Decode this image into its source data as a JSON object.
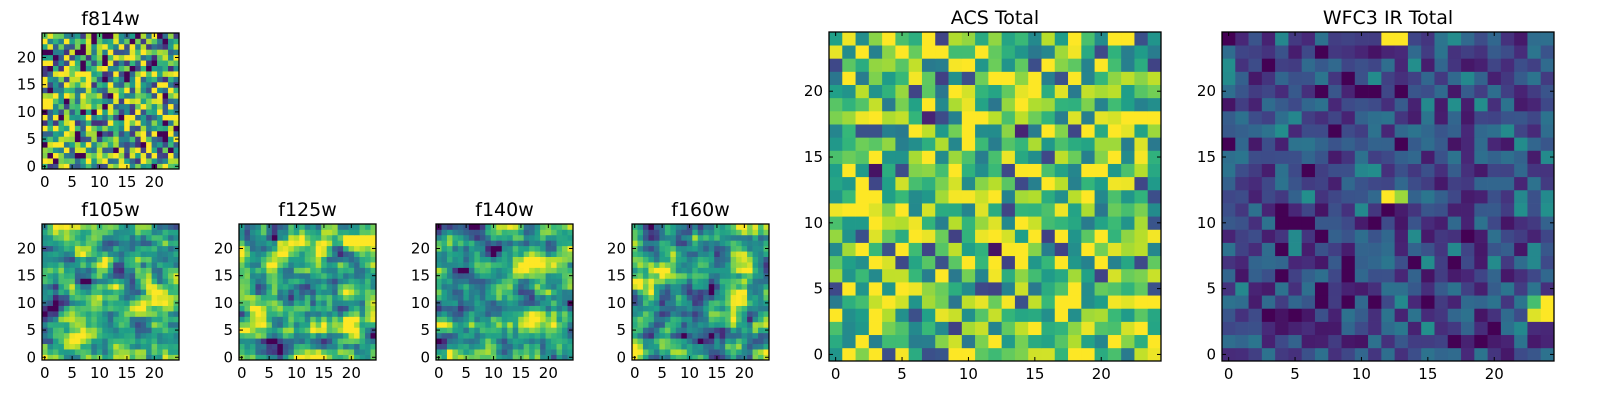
{
  "colormap": "viridis",
  "frame_color": "#000000",
  "chart_data": [
    {
      "type": "heatmap",
      "title": "f814w",
      "x_ticks": [
        "0",
        "5",
        "10",
        "15",
        "20"
      ],
      "y_ticks": [
        "0",
        "5",
        "10",
        "15",
        "20"
      ],
      "xlim": [
        -0.5,
        24.5
      ],
      "ylim": [
        -0.5,
        24.5
      ],
      "grid": false,
      "seed": 814,
      "mean": 0.6,
      "spread": 0.55,
      "smooth": false,
      "hotspots": []
    },
    {
      "type": "heatmap",
      "title": "f105w",
      "x_ticks": [
        "0",
        "5",
        "10",
        "15",
        "20"
      ],
      "y_ticks": [
        "0",
        "5",
        "10",
        "15",
        "20"
      ],
      "xlim": [
        -0.5,
        24.5
      ],
      "ylim": [
        -0.5,
        24.5
      ],
      "grid": false,
      "seed": 105,
      "mean": 0.62,
      "spread": 0.6,
      "smooth": true,
      "hotspots": []
    },
    {
      "type": "heatmap",
      "title": "f125w",
      "x_ticks": [
        "0",
        "5",
        "10",
        "15",
        "20"
      ],
      "y_ticks": [
        "0",
        "5",
        "10",
        "15",
        "20"
      ],
      "xlim": [
        -0.5,
        24.5
      ],
      "ylim": [
        -0.5,
        24.5
      ],
      "grid": false,
      "seed": 125,
      "mean": 0.62,
      "spread": 0.6,
      "smooth": true,
      "hotspots": []
    },
    {
      "type": "heatmap",
      "title": "f140w",
      "x_ticks": [
        "0",
        "5",
        "10",
        "15",
        "20"
      ],
      "y_ticks": [
        "0",
        "5",
        "10",
        "15",
        "20"
      ],
      "xlim": [
        -0.5,
        24.5
      ],
      "ylim": [
        -0.5,
        24.5
      ],
      "grid": false,
      "seed": 140,
      "mean": 0.62,
      "spread": 0.6,
      "smooth": true,
      "hotspots": []
    },
    {
      "type": "heatmap",
      "title": "f160w",
      "x_ticks": [
        "0",
        "5",
        "10",
        "15",
        "20"
      ],
      "y_ticks": [
        "0",
        "5",
        "10",
        "15",
        "20"
      ],
      "xlim": [
        -0.5,
        24.5
      ],
      "ylim": [
        -0.5,
        24.5
      ],
      "grid": false,
      "seed": 160,
      "mean": 0.62,
      "spread": 0.6,
      "smooth": true,
      "hotspots": []
    },
    {
      "type": "heatmap",
      "title": "ACS Total",
      "x_ticks": [
        "0",
        "5",
        "10",
        "15",
        "20"
      ],
      "y_ticks": [
        "0",
        "5",
        "10",
        "15",
        "20"
      ],
      "xlim": [
        -0.5,
        24.5
      ],
      "ylim": [
        -0.5,
        24.5
      ],
      "grid": false,
      "seed": 7,
      "mean": 0.72,
      "spread": 0.38,
      "smooth": false,
      "hotspots": [
        [
          2,
          11,
          1.0
        ],
        [
          3,
          11,
          0.95
        ],
        [
          3,
          10,
          1.0
        ],
        [
          4,
          10,
          0.9
        ],
        [
          3,
          9,
          0.95
        ],
        [
          18,
          0,
          1.0
        ],
        [
          19,
          0,
          1.0
        ],
        [
          18,
          18,
          0.95
        ],
        [
          14,
          18,
          0.9
        ],
        [
          7,
          18,
          0.1
        ],
        [
          3,
          14,
          0.05
        ],
        [
          12,
          8,
          0.05
        ],
        [
          14,
          17,
          0.1
        ]
      ]
    },
    {
      "type": "heatmap",
      "title": "WFC3 IR Total",
      "x_ticks": [
        "0",
        "5",
        "10",
        "15",
        "20"
      ],
      "y_ticks": [
        "0",
        "5",
        "10",
        "15",
        "20"
      ],
      "xlim": [
        -0.5,
        24.5
      ],
      "ylim": [
        -0.5,
        24.5
      ],
      "grid": false,
      "seed": 33,
      "mean": 0.22,
      "spread": 0.2,
      "smooth": false,
      "hotspots": [
        [
          12,
          24,
          1.0
        ],
        [
          13,
          24,
          1.0
        ],
        [
          12,
          12,
          1.0
        ],
        [
          13,
          12,
          0.85
        ],
        [
          24,
          4,
          1.0
        ],
        [
          24,
          3,
          1.0
        ],
        [
          23,
          3,
          0.95
        ],
        [
          23,
          4,
          0.7
        ],
        [
          3,
          3,
          0.0
        ],
        [
          4,
          3,
          0.05
        ],
        [
          4,
          2,
          0.05
        ],
        [
          13,
          2,
          0.4
        ],
        [
          12,
          2,
          0.35
        ]
      ]
    }
  ]
}
